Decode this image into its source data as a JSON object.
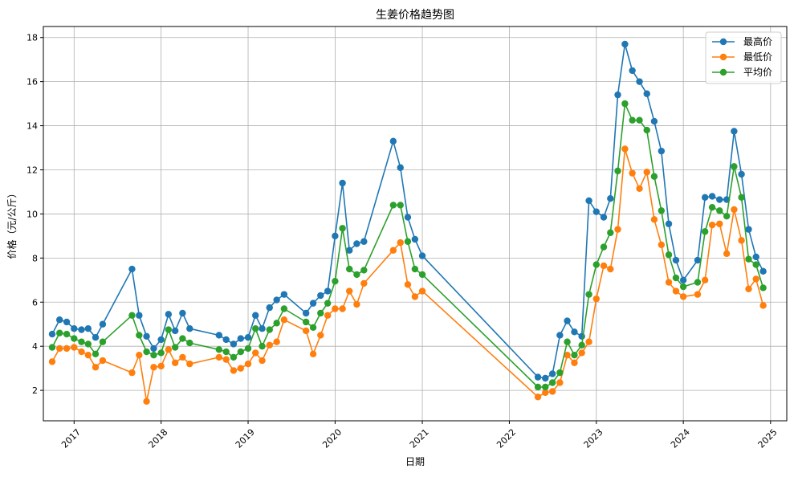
{
  "chart_data": {
    "type": "line",
    "title": "生姜价格趋势图",
    "xlabel": "日期",
    "ylabel": "价格（元/公斤）",
    "x_ticks": [
      "2017",
      "2018",
      "2019",
      "2020",
      "2021",
      "2022",
      "2023",
      "2024",
      "2025"
    ],
    "y_ticks": [
      2,
      4,
      6,
      8,
      10,
      12,
      14,
      16,
      18
    ],
    "xlim": [
      "2016-08-25",
      "2025-03-10"
    ],
    "ylim": [
      0.62,
      18.5
    ],
    "grid": true,
    "legend": "top-right",
    "x": [
      "2016-10-01",
      "2016-11-01",
      "2016-12-01",
      "2017-01-01",
      "2017-02-01",
      "2017-03-01",
      "2017-04-01",
      "2017-05-01",
      "2017-09-01",
      "2017-10-01",
      "2017-11-01",
      "2017-12-01",
      "2018-01-01",
      "2018-02-01",
      "2018-03-01",
      "2018-04-01",
      "2018-05-01",
      "2018-09-01",
      "2018-10-01",
      "2018-11-01",
      "2018-12-01",
      "2019-01-01",
      "2019-02-01",
      "2019-03-01",
      "2019-04-01",
      "2019-05-01",
      "2019-06-01",
      "2019-09-01",
      "2019-10-01",
      "2019-11-01",
      "2019-12-01",
      "2020-01-01",
      "2020-02-01",
      "2020-03-01",
      "2020-04-01",
      "2020-05-01",
      "2020-09-01",
      "2020-10-01",
      "2020-11-01",
      "2020-12-01",
      "2021-01-01",
      "2022-05-01",
      "2022-06-01",
      "2022-07-01",
      "2022-08-01",
      "2022-09-01",
      "2022-10-01",
      "2022-11-01",
      "2022-12-01",
      "2023-01-01",
      "2023-02-01",
      "2023-03-01",
      "2023-04-01",
      "2023-05-01",
      "2023-06-01",
      "2023-07-01",
      "2023-08-01",
      "2023-09-01",
      "2023-10-01",
      "2023-11-01",
      "2023-12-01",
      "2024-01-01",
      "2024-03-01",
      "2024-04-01",
      "2024-05-01",
      "2024-06-01",
      "2024-07-01",
      "2024-08-01",
      "2024-09-01",
      "2024-10-01",
      "2024-11-01",
      "2024-12-01"
    ],
    "series": [
      {
        "name": "最高价",
        "color": "#1f77b4",
        "values": [
          4.55,
          5.2,
          5.1,
          4.8,
          4.75,
          4.8,
          4.4,
          5.0,
          7.5,
          5.4,
          4.45,
          3.9,
          4.3,
          5.45,
          4.7,
          5.5,
          4.8,
          4.5,
          4.3,
          4.1,
          4.35,
          4.4,
          5.4,
          4.8,
          5.75,
          6.1,
          6.35,
          5.5,
          5.95,
          6.3,
          6.5,
          9.0,
          11.4,
          8.35,
          8.65,
          8.75,
          13.3,
          12.1,
          9.85,
          8.85,
          8.1,
          2.6,
          2.55,
          2.75,
          4.5,
          5.15,
          4.65,
          4.45,
          10.6,
          10.1,
          9.85,
          10.7,
          15.4,
          17.7,
          16.5,
          16.0,
          15.45,
          14.2,
          12.85,
          9.55,
          7.9,
          7.0,
          7.9,
          10.75,
          10.8,
          10.65,
          10.65,
          13.75,
          11.8,
          9.3,
          8.05,
          7.4
        ]
      },
      {
        "name": "最低价",
        "color": "#ff7f0e",
        "values": [
          3.3,
          3.9,
          3.9,
          3.95,
          3.75,
          3.6,
          3.05,
          3.35,
          2.8,
          3.6,
          1.5,
          3.05,
          3.1,
          3.85,
          3.25,
          3.5,
          3.2,
          3.5,
          3.4,
          2.9,
          3.0,
          3.2,
          3.7,
          3.35,
          4.05,
          4.2,
          5.2,
          4.7,
          3.65,
          4.5,
          5.4,
          5.7,
          5.7,
          6.5,
          5.9,
          6.85,
          8.35,
          8.7,
          6.8,
          6.25,
          6.5,
          1.7,
          1.9,
          1.95,
          2.35,
          3.6,
          3.25,
          3.7,
          4.2,
          6.15,
          7.65,
          7.5,
          9.3,
          12.95,
          11.85,
          11.15,
          11.9,
          9.75,
          8.6,
          6.9,
          6.5,
          6.25,
          6.35,
          7.0,
          9.5,
          9.55,
          8.2,
          10.2,
          8.8,
          6.6,
          7.05,
          5.85
        ]
      },
      {
        "name": "平均价",
        "color": "#2ca02c",
        "values": [
          3.95,
          4.6,
          4.55,
          4.35,
          4.2,
          4.1,
          3.65,
          4.2,
          5.4,
          4.5,
          3.75,
          3.6,
          3.7,
          4.75,
          3.95,
          4.35,
          4.15,
          3.85,
          3.75,
          3.5,
          3.75,
          3.9,
          4.8,
          4.0,
          4.75,
          5.05,
          5.7,
          5.1,
          4.85,
          5.5,
          5.95,
          6.95,
          9.35,
          7.5,
          7.25,
          7.45,
          10.4,
          10.4,
          8.75,
          7.5,
          7.25,
          2.15,
          2.15,
          2.35,
          2.8,
          4.2,
          3.6,
          4.05,
          6.35,
          7.7,
          8.5,
          9.15,
          11.95,
          15.0,
          14.25,
          14.25,
          13.8,
          11.7,
          10.15,
          8.15,
          7.1,
          6.7,
          6.9,
          9.2,
          10.3,
          10.15,
          9.9,
          12.15,
          10.75,
          7.95,
          7.7,
          6.65
        ]
      }
    ]
  }
}
